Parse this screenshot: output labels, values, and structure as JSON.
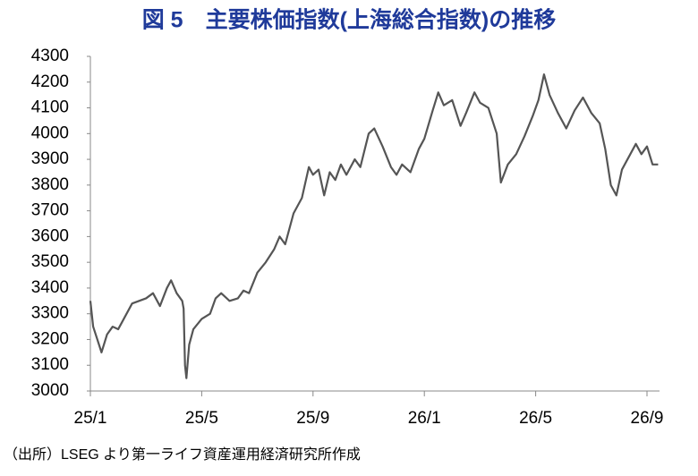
{
  "chart_data": {
    "type": "line",
    "title": "図 5　主要株価指数(上海総合指数)の推移",
    "source": "（出所）LSEG より第一ライフ資産運用経済研究所作成",
    "x": [
      0,
      0.1,
      0.25,
      0.4,
      0.6,
      0.8,
      1.0,
      1.2,
      1.5,
      1.75,
      2.0,
      2.25,
      2.5,
      2.75,
      2.9,
      3.1,
      3.3,
      3.35,
      3.4,
      3.45,
      3.55,
      3.7,
      4.0,
      4.3,
      4.5,
      4.7,
      5.0,
      5.3,
      5.5,
      5.7,
      6.0,
      6.3,
      6.6,
      6.8,
      7.0,
      7.3,
      7.6,
      7.85,
      8.0,
      8.2,
      8.4,
      8.6,
      8.8,
      9.0,
      9.2,
      9.5,
      9.7,
      10.0,
      10.2,
      10.5,
      10.8,
      11.0,
      11.2,
      11.5,
      11.8,
      12.0,
      12.3,
      12.5,
      12.7,
      13.0,
      13.3,
      13.5,
      13.8,
      14.0,
      14.3,
      14.6,
      14.75,
      15.0,
      15.3,
      15.6,
      15.9,
      16.1,
      16.3,
      16.5,
      16.8,
      17.1,
      17.4,
      17.7,
      18.0,
      18.3,
      18.5,
      18.7,
      18.9,
      19.1,
      19.4,
      19.6,
      19.8,
      20.0,
      20.2,
      20.4
    ],
    "values": [
      3350,
      3250,
      3200,
      3150,
      3220,
      3250,
      3240,
      3280,
      3340,
      3350,
      3360,
      3380,
      3330,
      3400,
      3430,
      3380,
      3350,
      3320,
      3100,
      3050,
      3180,
      3240,
      3280,
      3300,
      3360,
      3380,
      3350,
      3360,
      3390,
      3380,
      3460,
      3500,
      3550,
      3600,
      3570,
      3690,
      3750,
      3870,
      3840,
      3860,
      3760,
      3850,
      3820,
      3880,
      3840,
      3900,
      3870,
      4000,
      4020,
      3950,
      3870,
      3840,
      3880,
      3850,
      3940,
      3980,
      4090,
      4160,
      4110,
      4130,
      4030,
      4080,
      4160,
      4120,
      4100,
      4000,
      3810,
      3880,
      3920,
      3990,
      4070,
      4130,
      4230,
      4150,
      4080,
      4020,
      4090,
      4140,
      4080,
      4040,
      3940,
      3800,
      3760,
      3860,
      3920,
      3960,
      3920,
      3950,
      3880,
      3880
    ],
    "color": "#555555",
    "xlim": [
      0,
      20.45
    ],
    "xticks": [
      {
        "value": 0,
        "label": "25/1"
      },
      {
        "value": 4,
        "label": "25/5"
      },
      {
        "value": 8,
        "label": "25/9"
      },
      {
        "value": 12,
        "label": "26/1"
      },
      {
        "value": 16,
        "label": "26/5"
      },
      {
        "value": 20,
        "label": "26/9"
      }
    ],
    "ylim": [
      3000,
      4300
    ],
    "yticks": [
      3000,
      3100,
      3200,
      3300,
      3400,
      3500,
      3600,
      3700,
      3800,
      3900,
      4000,
      4100,
      4200,
      4300
    ],
    "grid": false
  }
}
